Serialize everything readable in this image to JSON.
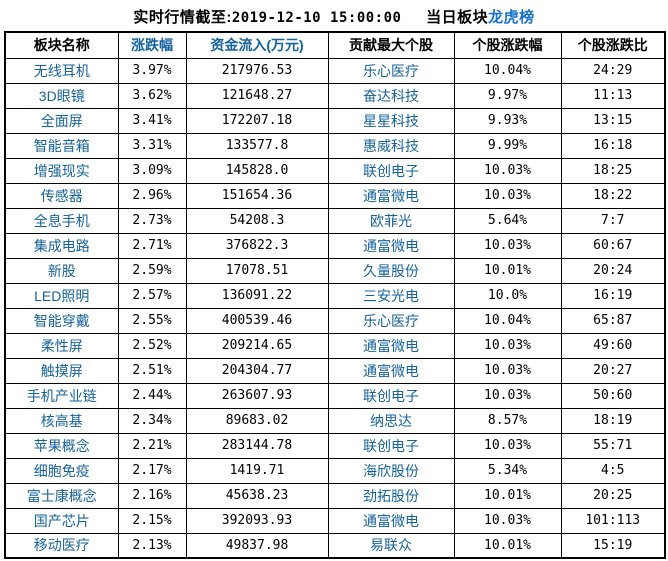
{
  "title": {
    "realtime_prefix": "实时行情截至:",
    "timestamp": "2019-12-10 15:00:00",
    "section_label": "当日板块",
    "link_label": "龙虎榜"
  },
  "colors": {
    "link_blue": "#15639c",
    "title_link_blue": "#1874cd",
    "border_black": "#000000",
    "text_black": "#000000",
    "background": "#ffffff"
  },
  "table": {
    "headers": [
      {
        "label": "板块名称",
        "accent": false
      },
      {
        "label": "涨跌幅",
        "accent": true
      },
      {
        "label": "资金流入(万元)",
        "accent": true
      },
      {
        "label": "贡献最大个股",
        "accent": false
      },
      {
        "label": "个股涨跌幅",
        "accent": false
      },
      {
        "label": "个股涨跌比",
        "accent": false
      }
    ],
    "rows": [
      {
        "sector": "无线耳机",
        "change": "3.97%",
        "inflow": "217976.53",
        "stock": "乐心医疗",
        "stock_change": "10.04%",
        "ratio": "24:29"
      },
      {
        "sector": "3D眼镜",
        "change": "3.62%",
        "inflow": "121648.27",
        "stock": "奋达科技",
        "stock_change": "9.97%",
        "ratio": "11:13"
      },
      {
        "sector": "全面屏",
        "change": "3.41%",
        "inflow": "172207.18",
        "stock": "星星科技",
        "stock_change": "9.93%",
        "ratio": "13:15"
      },
      {
        "sector": "智能音箱",
        "change": "3.31%",
        "inflow": "133577.8",
        "stock": "惠威科技",
        "stock_change": "9.99%",
        "ratio": "16:18"
      },
      {
        "sector": "增强现实",
        "change": "3.09%",
        "inflow": "145828.0",
        "stock": "联创电子",
        "stock_change": "10.03%",
        "ratio": "18:25"
      },
      {
        "sector": "传感器",
        "change": "2.96%",
        "inflow": "151654.36",
        "stock": "通富微电",
        "stock_change": "10.03%",
        "ratio": "18:22"
      },
      {
        "sector": "全息手机",
        "change": "2.73%",
        "inflow": "54208.3",
        "stock": "欧菲光",
        "stock_change": "5.64%",
        "ratio": "7:7"
      },
      {
        "sector": "集成电路",
        "change": "2.71%",
        "inflow": "376822.3",
        "stock": "通富微电",
        "stock_change": "10.03%",
        "ratio": "60:67"
      },
      {
        "sector": "新股",
        "change": "2.59%",
        "inflow": "17078.51",
        "stock": "久量股份",
        "stock_change": "10.01%",
        "ratio": "20:24"
      },
      {
        "sector": "LED照明",
        "change": "2.57%",
        "inflow": "136091.22",
        "stock": "三安光电",
        "stock_change": "10.0%",
        "ratio": "16:19"
      },
      {
        "sector": "智能穿戴",
        "change": "2.55%",
        "inflow": "400539.46",
        "stock": "乐心医疗",
        "stock_change": "10.04%",
        "ratio": "65:87"
      },
      {
        "sector": "柔性屏",
        "change": "2.52%",
        "inflow": "209214.65",
        "stock": "通富微电",
        "stock_change": "10.03%",
        "ratio": "49:60"
      },
      {
        "sector": "触摸屏",
        "change": "2.51%",
        "inflow": "204304.77",
        "stock": "通富微电",
        "stock_change": "10.03%",
        "ratio": "20:27"
      },
      {
        "sector": "手机产业链",
        "change": "2.44%",
        "inflow": "263607.93",
        "stock": "联创电子",
        "stock_change": "10.03%",
        "ratio": "50:60"
      },
      {
        "sector": "核高基",
        "change": "2.34%",
        "inflow": "89683.02",
        "stock": "纳思达",
        "stock_change": "8.57%",
        "ratio": "18:19"
      },
      {
        "sector": "苹果概念",
        "change": "2.21%",
        "inflow": "283144.78",
        "stock": "联创电子",
        "stock_change": "10.03%",
        "ratio": "55:71"
      },
      {
        "sector": "细胞免疫",
        "change": "2.17%",
        "inflow": "1419.71",
        "stock": "海欣股份",
        "stock_change": "5.34%",
        "ratio": "4:5"
      },
      {
        "sector": "富士康概念",
        "change": "2.16%",
        "inflow": "45638.23",
        "stock": "劲拓股份",
        "stock_change": "10.01%",
        "ratio": "20:25"
      },
      {
        "sector": "国产芯片",
        "change": "2.15%",
        "inflow": "392093.93",
        "stock": "通富微电",
        "stock_change": "10.03%",
        "ratio": "101:113"
      },
      {
        "sector": "移动医疗",
        "change": "2.13%",
        "inflow": "49837.98",
        "stock": "易联众",
        "stock_change": "10.01%",
        "ratio": "15:19"
      }
    ]
  }
}
